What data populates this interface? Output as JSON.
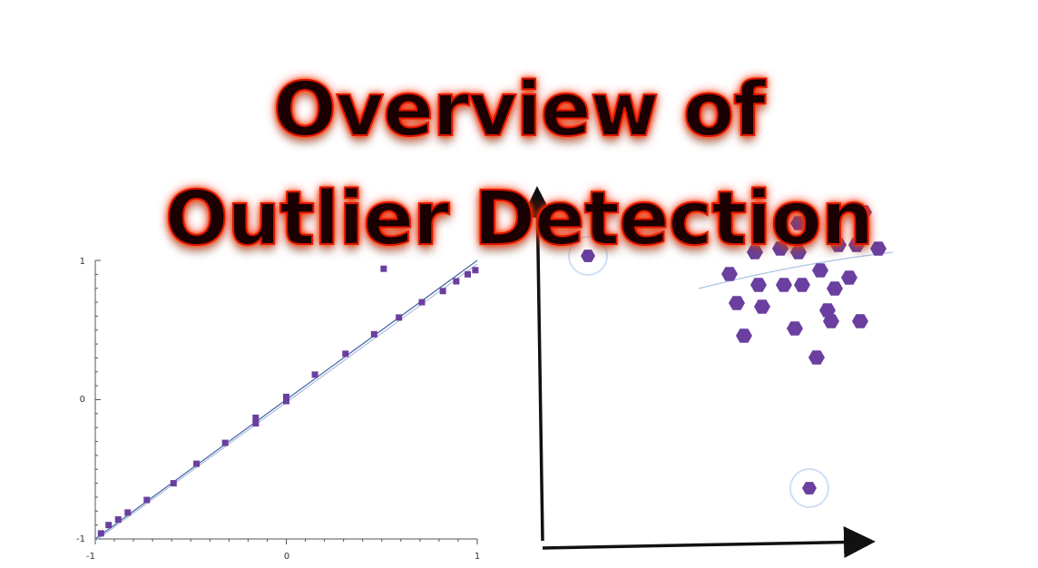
{
  "title": {
    "line1": "Overview of",
    "line2": "Outlier Detection"
  },
  "colors": {
    "title_fill": "#1a0000",
    "title_glow": "#ff2200",
    "point_color": "#6a3fa0",
    "fit_line": "#4a6aa8",
    "axis": "#111111"
  },
  "chart_data": [
    {
      "type": "scatter",
      "title": "",
      "xlabel": "",
      "ylabel": "",
      "xlim": [
        -1,
        1
      ],
      "ylim": [
        -1,
        1
      ],
      "x_tick_labels": [
        "-1",
        "0",
        "1"
      ],
      "y_tick_labels": [
        "1",
        "0",
        "-1"
      ],
      "fit_line": {
        "from": [
          -1,
          -1
        ],
        "to": [
          1,
          1
        ]
      },
      "points": [
        {
          "x": -0.97,
          "y": -0.96
        },
        {
          "x": -0.93,
          "y": -0.9
        },
        {
          "x": -0.88,
          "y": -0.86
        },
        {
          "x": -0.83,
          "y": -0.81
        },
        {
          "x": -0.73,
          "y": -0.72
        },
        {
          "x": -0.59,
          "y": -0.6
        },
        {
          "x": -0.47,
          "y": -0.46
        },
        {
          "x": -0.32,
          "y": -0.31
        },
        {
          "x": -0.16,
          "y": -0.17
        },
        {
          "x": -0.16,
          "y": -0.13
        },
        {
          "x": 0.0,
          "y": -0.01
        },
        {
          "x": 0.0,
          "y": 0.02
        },
        {
          "x": 0.15,
          "y": 0.18
        },
        {
          "x": 0.31,
          "y": 0.33
        },
        {
          "x": 0.46,
          "y": 0.47
        },
        {
          "x": 0.59,
          "y": 0.59
        },
        {
          "x": 0.71,
          "y": 0.7
        },
        {
          "x": 0.82,
          "y": 0.78
        },
        {
          "x": 0.89,
          "y": 0.85
        },
        {
          "x": 0.95,
          "y": 0.9
        },
        {
          "x": 0.99,
          "y": 0.93
        },
        {
          "x": 0.51,
          "y": 0.94,
          "outlier": true
        }
      ]
    },
    {
      "type": "scatter",
      "title": "",
      "xlabel": "",
      "ylabel": "",
      "xlim": [
        0,
        100
      ],
      "ylim": [
        0,
        100
      ],
      "points": [
        {
          "x": 70,
          "y": 88
        },
        {
          "x": 88,
          "y": 91
        },
        {
          "x": 58,
          "y": 80
        },
        {
          "x": 65,
          "y": 81
        },
        {
          "x": 70,
          "y": 80
        },
        {
          "x": 81,
          "y": 82
        },
        {
          "x": 86,
          "y": 82
        },
        {
          "x": 92,
          "y": 81
        },
        {
          "x": 51,
          "y": 74
        },
        {
          "x": 76,
          "y": 75
        },
        {
          "x": 84,
          "y": 73
        },
        {
          "x": 59,
          "y": 71
        },
        {
          "x": 66,
          "y": 71
        },
        {
          "x": 71,
          "y": 71
        },
        {
          "x": 80,
          "y": 70
        },
        {
          "x": 53,
          "y": 66
        },
        {
          "x": 60,
          "y": 65
        },
        {
          "x": 78,
          "y": 64
        },
        {
          "x": 69,
          "y": 59
        },
        {
          "x": 79,
          "y": 61
        },
        {
          "x": 87,
          "y": 61
        },
        {
          "x": 55,
          "y": 57
        },
        {
          "x": 75,
          "y": 51
        },
        {
          "x": 12,
          "y": 79,
          "outlier": true
        },
        {
          "x": 73,
          "y": 15,
          "outlier": true
        }
      ]
    }
  ]
}
